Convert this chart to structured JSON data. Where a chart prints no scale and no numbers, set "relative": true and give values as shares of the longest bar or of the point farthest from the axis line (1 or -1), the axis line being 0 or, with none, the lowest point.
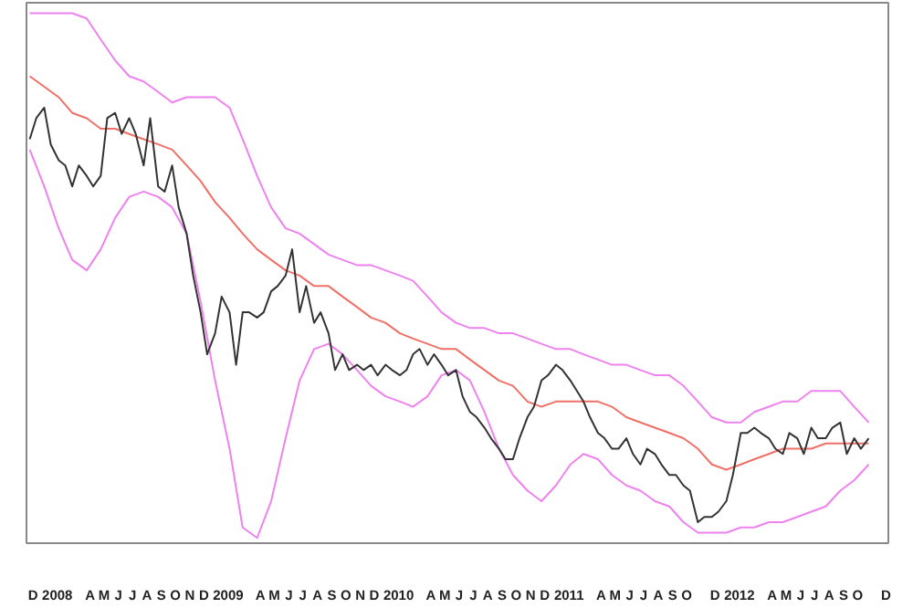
{
  "chart_data": {
    "type": "line",
    "relative": true,
    "grid": false,
    "xlim": [
      "2007-11-24",
      "2012-12-13"
    ],
    "xticks": [
      {
        "value": "2007-12-08",
        "label": "D"
      },
      {
        "value": "2008-01-29",
        "label": "2008"
      },
      {
        "value": "2008-04-08",
        "label": "A"
      },
      {
        "value": "2008-05-08",
        "label": "M"
      },
      {
        "value": "2008-06-08",
        "label": "J"
      },
      {
        "value": "2008-07-08",
        "label": "J"
      },
      {
        "value": "2008-08-08",
        "label": "A"
      },
      {
        "value": "2008-09-08",
        "label": "S"
      },
      {
        "value": "2008-10-08",
        "label": "O"
      },
      {
        "value": "2008-11-08",
        "label": "N"
      },
      {
        "value": "2008-12-08",
        "label": "D"
      },
      {
        "value": "2009-01-29",
        "label": "2009"
      },
      {
        "value": "2009-04-08",
        "label": "A"
      },
      {
        "value": "2009-05-08",
        "label": "M"
      },
      {
        "value": "2009-06-08",
        "label": "J"
      },
      {
        "value": "2009-07-08",
        "label": "J"
      },
      {
        "value": "2009-08-08",
        "label": "A"
      },
      {
        "value": "2009-09-08",
        "label": "S"
      },
      {
        "value": "2009-10-08",
        "label": "O"
      },
      {
        "value": "2009-11-08",
        "label": "N"
      },
      {
        "value": "2009-12-08",
        "label": "D"
      },
      {
        "value": "2010-01-29",
        "label": "2010"
      },
      {
        "value": "2010-04-08",
        "label": "A"
      },
      {
        "value": "2010-05-08",
        "label": "M"
      },
      {
        "value": "2010-06-08",
        "label": "J"
      },
      {
        "value": "2010-07-08",
        "label": "J"
      },
      {
        "value": "2010-08-08",
        "label": "A"
      },
      {
        "value": "2010-09-08",
        "label": "S"
      },
      {
        "value": "2010-10-08",
        "label": "O"
      },
      {
        "value": "2010-11-08",
        "label": "N"
      },
      {
        "value": "2010-12-08",
        "label": "D"
      },
      {
        "value": "2011-01-29",
        "label": "2011"
      },
      {
        "value": "2011-04-08",
        "label": "A"
      },
      {
        "value": "2011-05-08",
        "label": "M"
      },
      {
        "value": "2011-06-08",
        "label": "J"
      },
      {
        "value": "2011-07-08",
        "label": "J"
      },
      {
        "value": "2011-08-08",
        "label": "A"
      },
      {
        "value": "2011-09-08",
        "label": "S"
      },
      {
        "value": "2011-10-08",
        "label": "O"
      },
      {
        "value": "2011-12-08",
        "label": "D"
      },
      {
        "value": "2012-01-29",
        "label": "2012"
      },
      {
        "value": "2012-04-08",
        "label": "A"
      },
      {
        "value": "2012-05-08",
        "label": "M"
      },
      {
        "value": "2012-06-08",
        "label": "J"
      },
      {
        "value": "2012-07-08",
        "label": "J"
      },
      {
        "value": "2012-08-08",
        "label": "A"
      },
      {
        "value": "2012-09-08",
        "label": "S"
      },
      {
        "value": "2012-10-08",
        "label": "O"
      },
      {
        "value": "2012-12-08",
        "label": "D"
      }
    ],
    "x": [
      "2007-12",
      "2008-01",
      "2008-02",
      "2008-03",
      "2008-04",
      "2008-05",
      "2008-06",
      "2008-07",
      "2008-08",
      "2008-09",
      "2008-10",
      "2008-11",
      "2008-12",
      "2009-01",
      "2009-02",
      "2009-03",
      "2009-04",
      "2009-05",
      "2009-06",
      "2009-07",
      "2009-08",
      "2009-09",
      "2009-10",
      "2009-11",
      "2009-12",
      "2010-01",
      "2010-02",
      "2010-03",
      "2010-04",
      "2010-05",
      "2010-06",
      "2010-07",
      "2010-08",
      "2010-09",
      "2010-10",
      "2010-11",
      "2010-12",
      "2011-01",
      "2011-02",
      "2011-03",
      "2011-04",
      "2011-05",
      "2011-06",
      "2011-07",
      "2011-08",
      "2011-09",
      "2011-10",
      "2011-11",
      "2011-12",
      "2012-01",
      "2012-02",
      "2012-03",
      "2012-04",
      "2012-05",
      "2012-06",
      "2012-07",
      "2012-08",
      "2012-09",
      "2012-10",
      "2012-11"
    ],
    "series": [
      {
        "color": "#ee82ee",
        "values": [
          1.0,
          1.0,
          1.0,
          1.0,
          0.99,
          0.95,
          0.91,
          0.88,
          0.87,
          0.85,
          0.83,
          0.84,
          0.84,
          0.84,
          0.82,
          0.76,
          0.69,
          0.63,
          0.59,
          0.58,
          0.56,
          0.54,
          0.53,
          0.52,
          0.52,
          0.51,
          0.5,
          0.49,
          0.46,
          0.43,
          0.41,
          0.4,
          0.4,
          0.39,
          0.39,
          0.38,
          0.37,
          0.36,
          0.36,
          0.35,
          0.34,
          0.33,
          0.33,
          0.32,
          0.31,
          0.31,
          0.29,
          0.26,
          0.23,
          0.22,
          0.22,
          0.24,
          0.25,
          0.26,
          0.26,
          0.28,
          0.28,
          0.28,
          0.25,
          0.22
        ]
      },
      {
        "color": "#f07068",
        "values": [
          0.88,
          0.86,
          0.84,
          0.81,
          0.8,
          0.78,
          0.78,
          0.77,
          0.76,
          0.75,
          0.74,
          0.71,
          0.68,
          0.64,
          0.61,
          0.58,
          0.55,
          0.53,
          0.51,
          0.5,
          0.48,
          0.48,
          0.46,
          0.44,
          0.42,
          0.41,
          0.39,
          0.38,
          0.37,
          0.36,
          0.36,
          0.34,
          0.32,
          0.3,
          0.29,
          0.26,
          0.25,
          0.26,
          0.26,
          0.26,
          0.26,
          0.25,
          0.23,
          0.22,
          0.21,
          0.2,
          0.19,
          0.17,
          0.14,
          0.13,
          0.14,
          0.15,
          0.16,
          0.17,
          0.17,
          0.17,
          0.18,
          0.18,
          0.18,
          0.18
        ]
      },
      {
        "color": "#ee82ee",
        "values": [
          0.74,
          0.67,
          0.59,
          0.53,
          0.51,
          0.55,
          0.61,
          0.65,
          0.66,
          0.65,
          0.63,
          0.58,
          0.45,
          0.3,
          0.17,
          0.02,
          0.0,
          0.07,
          0.19,
          0.3,
          0.36,
          0.37,
          0.35,
          0.32,
          0.29,
          0.27,
          0.26,
          0.25,
          0.27,
          0.31,
          0.32,
          0.3,
          0.24,
          0.17,
          0.12,
          0.09,
          0.07,
          0.1,
          0.14,
          0.16,
          0.15,
          0.12,
          0.1,
          0.09,
          0.07,
          0.06,
          0.03,
          0.01,
          0.01,
          0.01,
          0.02,
          0.02,
          0.03,
          0.03,
          0.04,
          0.05,
          0.06,
          0.09,
          0.11,
          0.14
        ]
      },
      {
        "color": "#333333",
        "x": [
          "2007-12-01",
          "2007-12-15",
          "2008-01-01",
          "2008-01-15",
          "2008-02-01",
          "2008-02-15",
          "2008-03-01",
          "2008-03-15",
          "2008-04-01",
          "2008-04-15",
          "2008-05-01",
          "2008-05-15",
          "2008-06-01",
          "2008-06-15",
          "2008-07-01",
          "2008-07-15",
          "2008-08-01",
          "2008-08-15",
          "2008-09-01",
          "2008-09-15",
          "2008-10-01",
          "2008-10-15",
          "2008-11-01",
          "2008-11-15",
          "2008-12-01",
          "2008-12-15",
          "2009-01-01",
          "2009-01-15",
          "2009-02-01",
          "2009-02-15",
          "2009-03-01",
          "2009-03-15",
          "2009-04-01",
          "2009-04-15",
          "2009-05-01",
          "2009-05-15",
          "2009-06-01",
          "2009-06-15",
          "2009-07-01",
          "2009-07-15",
          "2009-08-01",
          "2009-08-15",
          "2009-09-01",
          "2009-09-15",
          "2009-10-01",
          "2009-10-15",
          "2009-11-01",
          "2009-11-15",
          "2009-12-01",
          "2009-12-15",
          "2010-01-01",
          "2010-01-15",
          "2010-02-01",
          "2010-02-15",
          "2010-03-01",
          "2010-03-15",
          "2010-04-01",
          "2010-04-15",
          "2010-05-01",
          "2010-05-15",
          "2010-06-01",
          "2010-06-15",
          "2010-07-01",
          "2010-07-15",
          "2010-08-01",
          "2010-08-15",
          "2010-09-01",
          "2010-09-15",
          "2010-10-01",
          "2010-10-15",
          "2010-11-01",
          "2010-11-15",
          "2010-12-01",
          "2010-12-15",
          "2011-01-01",
          "2011-01-15",
          "2011-02-01",
          "2011-02-15",
          "2011-03-01",
          "2011-03-15",
          "2011-04-01",
          "2011-04-15",
          "2011-05-01",
          "2011-05-15",
          "2011-06-01",
          "2011-06-15",
          "2011-07-01",
          "2011-07-15",
          "2011-08-01",
          "2011-08-15",
          "2011-09-01",
          "2011-09-15",
          "2011-10-01",
          "2011-10-15",
          "2011-11-01",
          "2011-11-15",
          "2011-12-01",
          "2011-12-15",
          "2012-01-01",
          "2012-01-15",
          "2012-02-01",
          "2012-02-15",
          "2012-03-01",
          "2012-03-15",
          "2012-04-01",
          "2012-04-15",
          "2012-05-01",
          "2012-05-15",
          "2012-06-01",
          "2012-06-15",
          "2012-07-01",
          "2012-07-15",
          "2012-08-01",
          "2012-08-15",
          "2012-09-01",
          "2012-09-15",
          "2012-10-01",
          "2012-10-15",
          "2012-11-01"
        ],
        "values": [
          0.76,
          0.8,
          0.82,
          0.75,
          0.72,
          0.71,
          0.67,
          0.71,
          0.69,
          0.67,
          0.69,
          0.8,
          0.81,
          0.77,
          0.8,
          0.77,
          0.71,
          0.8,
          0.67,
          0.66,
          0.71,
          0.63,
          0.58,
          0.5,
          0.43,
          0.35,
          0.39,
          0.46,
          0.43,
          0.33,
          0.43,
          0.43,
          0.42,
          0.43,
          0.47,
          0.48,
          0.5,
          0.55,
          0.43,
          0.48,
          0.41,
          0.43,
          0.39,
          0.32,
          0.35,
          0.32,
          0.33,
          0.32,
          0.33,
          0.31,
          0.33,
          0.32,
          0.31,
          0.32,
          0.35,
          0.36,
          0.33,
          0.35,
          0.33,
          0.31,
          0.32,
          0.27,
          0.24,
          0.23,
          0.21,
          0.19,
          0.17,
          0.15,
          0.15,
          0.19,
          0.23,
          0.25,
          0.3,
          0.31,
          0.33,
          0.32,
          0.3,
          0.28,
          0.26,
          0.23,
          0.2,
          0.19,
          0.17,
          0.17,
          0.19,
          0.16,
          0.14,
          0.17,
          0.16,
          0.14,
          0.12,
          0.12,
          0.1,
          0.09,
          0.03,
          0.04,
          0.04,
          0.05,
          0.07,
          0.12,
          0.2,
          0.2,
          0.21,
          0.2,
          0.19,
          0.17,
          0.16,
          0.2,
          0.19,
          0.16,
          0.21,
          0.19,
          0.19,
          0.21,
          0.22,
          0.16,
          0.19,
          0.17,
          0.19
        ]
      }
    ]
  }
}
